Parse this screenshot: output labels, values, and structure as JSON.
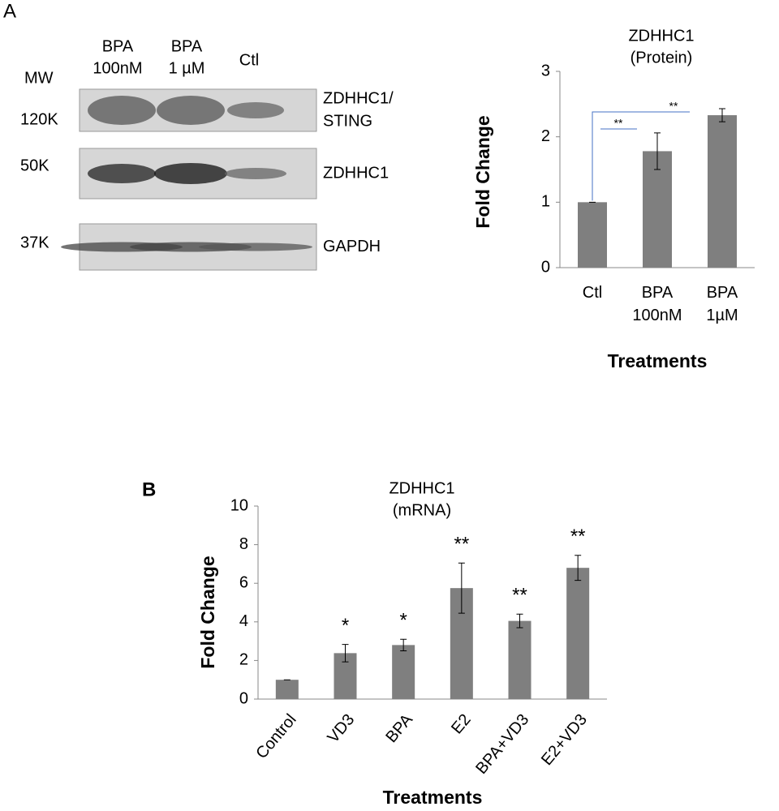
{
  "panel_labels": [
    "A",
    "B"
  ],
  "blot": {
    "mw_label": "MW",
    "lanes": [
      [
        "BPA",
        "100nM"
      ],
      [
        "BPA",
        "1 µM"
      ],
      [
        "Ctl"
      ]
    ],
    "markers": [
      "120K",
      "50K",
      "37K"
    ],
    "bands": [
      [
        "ZDHHC1/",
        "STING"
      ],
      [
        "ZDHHC1"
      ],
      [
        "GAPDH"
      ]
    ]
  },
  "chart_data": [
    {
      "type": "bar",
      "title": "ZDHHC1",
      "subtitle": "(Protein)",
      "categories": [
        "Ctl",
        "BPA 100nM",
        "BPA 1µM"
      ],
      "values": [
        1.0,
        1.78,
        2.33
      ],
      "errors": [
        0.0,
        0.28,
        0.1
      ],
      "color": "#7f7f7f",
      "ylim": [
        0,
        3
      ],
      "yticks": [
        0,
        1,
        2,
        3
      ],
      "xlabel": "Treatments",
      "ylabel": "Fold Change",
      "annotations": [
        "**",
        "**"
      ],
      "annotation_color": "#4472c4"
    },
    {
      "type": "bar",
      "title": "ZDHHC1",
      "subtitle": "(mRNA)",
      "categories": [
        "Control",
        "VD3",
        "BPA",
        "E2",
        "BPA+VD3",
        "E2+VD3"
      ],
      "values": [
        1.0,
        2.38,
        2.8,
        5.75,
        4.05,
        6.8
      ],
      "errors": [
        0.0,
        0.45,
        0.3,
        1.3,
        0.35,
        0.65
      ],
      "significance": [
        null,
        "*",
        "*",
        "**",
        "**",
        "**"
      ],
      "color": "#7f7f7f",
      "ylim": [
        0,
        10
      ],
      "yticks": [
        0,
        2,
        4,
        6,
        8,
        10
      ],
      "xlabel": "Treatments",
      "ylabel": "Fold Change"
    }
  ]
}
